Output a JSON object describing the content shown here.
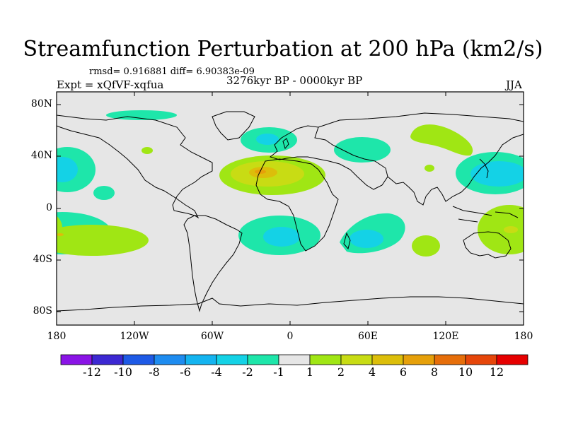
{
  "title": "Streamfunction Perturbation at 200 hPa (km2/s)",
  "stats": "rmsd= 0.916881 diff= 6.90383e-09",
  "period": "3276kyr BP - 0000kyr BP",
  "expt": "Expt = xQfVF-xqfua",
  "season": "JJA",
  "axes": {
    "x_ticks": [
      "180",
      "120W",
      "60W",
      "0",
      "60E",
      "120E",
      "180"
    ],
    "y_ticks": [
      "80N",
      "40N",
      "0",
      "40S",
      "80S"
    ]
  },
  "colorbar": {
    "colors": [
      "#8a14e6",
      "#3c28d2",
      "#1e5ae6",
      "#1e8cf0",
      "#14b4f0",
      "#14d2e6",
      "#1ee6aa",
      "#e6e6e6",
      "#a0e614",
      "#c8dc14",
      "#dcbe0a",
      "#e6a00a",
      "#e66e0a",
      "#e6460a",
      "#e60000"
    ],
    "labels": [
      "-12",
      "-10",
      "-8",
      "-6",
      "-4",
      "-2",
      "-1",
      "1",
      "2",
      "4",
      "6",
      "8",
      "10",
      "12"
    ]
  },
  "palette": {
    "neutral": "#e6e6e6",
    "neg1": "#1ee6aa",
    "neg2": "#14d2e6",
    "pos1": "#a0e614",
    "pos2": "#c8dc14",
    "pos3": "#dcbe0a",
    "pos4": "#e6a00a"
  }
}
